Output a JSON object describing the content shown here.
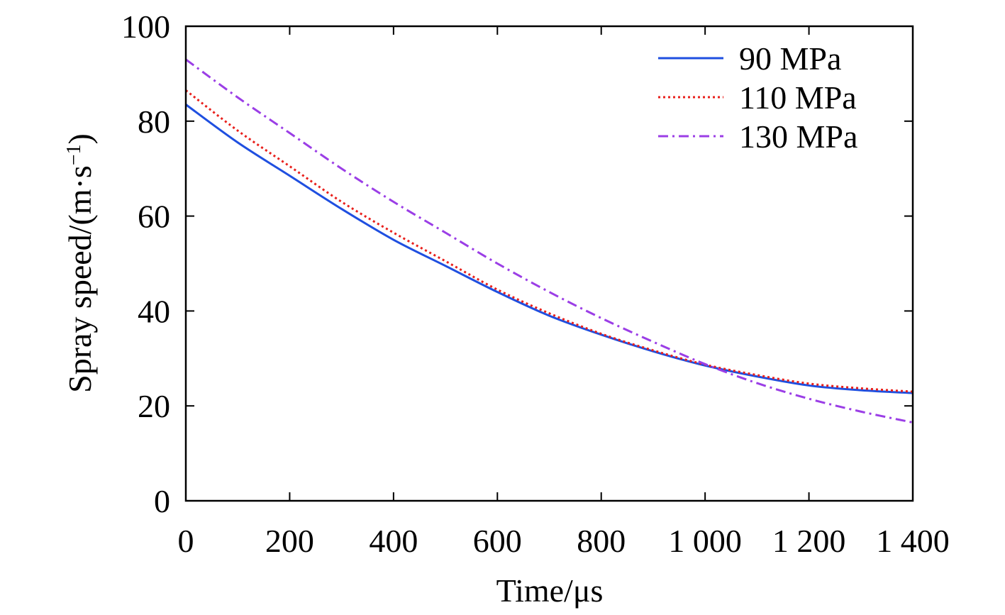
{
  "chart_data": {
    "type": "line",
    "title": "",
    "xlabel": "Time/μs",
    "ylabel": "Spray speed/(m·s",
    "ylabel_sup": "−1",
    "ylabel_close": ")",
    "xlim": [
      0,
      1400
    ],
    "ylim": [
      0,
      100
    ],
    "x_ticks": [
      0,
      200,
      400,
      600,
      800,
      1000,
      1200,
      1400
    ],
    "x_tick_labels": [
      "0",
      "200",
      "400",
      "600",
      "800",
      "1 000",
      "1 200",
      "1 400"
    ],
    "y_ticks": [
      0,
      20,
      40,
      60,
      80,
      100
    ],
    "y_tick_labels": [
      "0",
      "20",
      "40",
      "60",
      "80",
      "100"
    ],
    "grid": false,
    "legend_position": "top-right",
    "x": [
      0,
      100,
      200,
      300,
      400,
      500,
      600,
      700,
      800,
      900,
      1000,
      1100,
      1200,
      1300,
      1400
    ],
    "series": [
      {
        "name": "90 MPa",
        "color": "#1f4fe0",
        "style": "solid",
        "values": [
          83.5,
          75.5,
          68.5,
          61.5,
          55,
          49.5,
          44,
          39,
          35,
          31.5,
          28.5,
          26.2,
          24.3,
          23.3,
          22.7
        ]
      },
      {
        "name": "110 MPa",
        "color": "#e8201c",
        "style": "dotted",
        "values": [
          86.5,
          78,
          70.5,
          63,
          56.5,
          50.5,
          44.5,
          39.5,
          35.2,
          31.7,
          28.7,
          26.5,
          24.7,
          23.7,
          23
        ]
      },
      {
        "name": "130 MPa",
        "color": "#9b3ee6",
        "style": "dashdot",
        "values": [
          93,
          85,
          77.5,
          70,
          63,
          56.5,
          50,
          44,
          38.5,
          33.5,
          28.8,
          24.8,
          21.5,
          18.8,
          16.5
        ]
      }
    ]
  }
}
